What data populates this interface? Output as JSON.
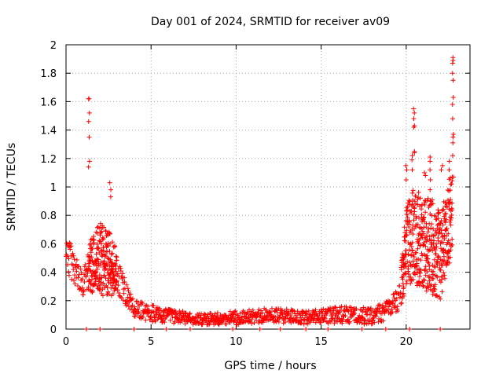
{
  "chart_data": {
    "type": "scatter",
    "title": "Day 001 of 2024, SRMTID for receiver av09",
    "xlabel": "GPS time / hours",
    "ylabel": "SRMTID / TECUs",
    "xlim": [
      0,
      23.75
    ],
    "ylim": [
      0,
      2
    ],
    "xticks": [
      0,
      5,
      10,
      15,
      20
    ],
    "xtick_labels": [
      "0",
      "5",
      "10",
      "15",
      "20"
    ],
    "yticks": [
      0,
      0.2,
      0.4,
      0.6,
      0.8,
      1,
      1.2,
      1.4,
      1.6,
      1.8,
      2
    ],
    "ytick_labels": [
      "0",
      "0.2",
      "0.4",
      "0.6",
      "0.8",
      "1",
      "1.2",
      "1.4",
      "1.6",
      "1.8",
      "2"
    ],
    "grid": true,
    "marker": "+",
    "color": "#ff0000",
    "series": [
      {
        "name": "av09",
        "envelope": [
          {
            "t": 0.0,
            "mid": 0.55,
            "spread": 0.12
          },
          {
            "t": 0.3,
            "mid": 0.48,
            "spread": 0.14
          },
          {
            "t": 0.6,
            "mid": 0.38,
            "spread": 0.12
          },
          {
            "t": 1.0,
            "mid": 0.32,
            "spread": 0.08
          },
          {
            "t": 1.5,
            "mid": 0.45,
            "spread": 0.2
          },
          {
            "t": 2.0,
            "mid": 0.5,
            "spread": 0.25
          },
          {
            "t": 2.5,
            "mid": 0.45,
            "spread": 0.25
          },
          {
            "t": 3.0,
            "mid": 0.4,
            "spread": 0.15
          },
          {
            "t": 3.5,
            "mid": 0.25,
            "spread": 0.08
          },
          {
            "t": 4.0,
            "mid": 0.15,
            "spread": 0.06
          },
          {
            "t": 5.0,
            "mid": 0.11,
            "spread": 0.06
          },
          {
            "t": 6.0,
            "mid": 0.09,
            "spread": 0.05
          },
          {
            "t": 8.0,
            "mid": 0.07,
            "spread": 0.04
          },
          {
            "t": 10.0,
            "mid": 0.08,
            "spread": 0.05
          },
          {
            "t": 12.0,
            "mid": 0.1,
            "spread": 0.05
          },
          {
            "t": 14.0,
            "mid": 0.08,
            "spread": 0.05
          },
          {
            "t": 16.0,
            "mid": 0.1,
            "spread": 0.06
          },
          {
            "t": 18.0,
            "mid": 0.09,
            "spread": 0.06
          },
          {
            "t": 19.0,
            "mid": 0.14,
            "spread": 0.07
          },
          {
            "t": 19.6,
            "mid": 0.22,
            "spread": 0.1
          },
          {
            "t": 20.0,
            "mid": 0.6,
            "spread": 0.3
          },
          {
            "t": 20.5,
            "mid": 0.65,
            "spread": 0.35
          },
          {
            "t": 21.0,
            "mid": 0.6,
            "spread": 0.32
          },
          {
            "t": 21.5,
            "mid": 0.6,
            "spread": 0.35
          },
          {
            "t": 22.0,
            "mid": 0.5,
            "spread": 0.3
          },
          {
            "t": 22.5,
            "mid": 0.75,
            "spread": 0.3
          },
          {
            "t": 22.7,
            "mid": 0.8,
            "spread": 0.3
          }
        ],
        "spikes": [
          {
            "x": 1.35,
            "y": [
              1.62,
              1.62,
              1.52,
              1.46,
              1.35,
              1.18,
              1.14
            ]
          },
          {
            "x": 2.6,
            "y": [
              1.03,
              0.98,
              0.93
            ]
          },
          {
            "x": 20.0,
            "y": [
              1.15,
              1.12,
              1.05
            ]
          },
          {
            "x": 20.35,
            "y": [
              1.22,
              1.19,
              1.12
            ]
          },
          {
            "x": 20.45,
            "y": [
              1.55,
              1.52,
              1.48,
              1.43,
              1.42,
              1.25,
              1.24
            ]
          },
          {
            "x": 21.1,
            "y": [
              1.1,
              1.08
            ]
          },
          {
            "x": 21.4,
            "y": [
              1.21,
              1.18,
              1.12,
              1.05,
              0.98
            ]
          },
          {
            "x": 22.1,
            "y": [
              1.15,
              1.12
            ]
          },
          {
            "x": 22.55,
            "y": [
              1.18,
              1.12
            ]
          },
          {
            "x": 22.75,
            "y": [
              1.91,
              1.89,
              1.87,
              1.8,
              1.75,
              1.63,
              1.58,
              1.48,
              1.37,
              1.35,
              1.31,
              1.22,
              1.07
            ]
          }
        ],
        "zeros": [
          1.2,
          2.0,
          4.0,
          5.9,
          7.3,
          9.8,
          11.4,
          12.6,
          14.1,
          15.4,
          17.4,
          18.8,
          20.2,
          22.0
        ]
      }
    ]
  }
}
